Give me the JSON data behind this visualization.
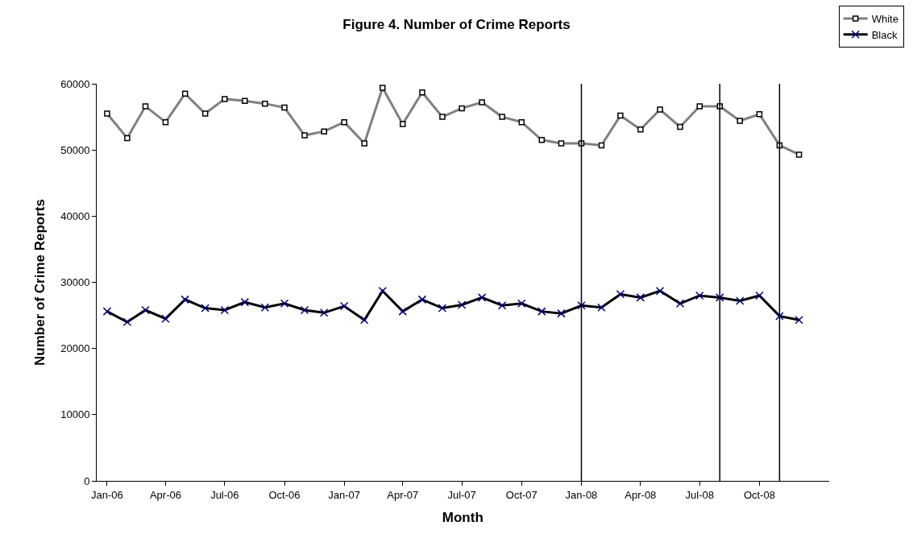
{
  "chart_data": {
    "type": "line",
    "title": "Figure 4. Number of Crime Reports",
    "xlabel": "Month",
    "ylabel": "Number of Crime Reports",
    "x": [
      "2006-01",
      "2006-02",
      "2006-03",
      "2006-04",
      "2006-05",
      "2006-06",
      "2006-07",
      "2006-08",
      "2006-09",
      "2006-10",
      "2006-11",
      "2006-12",
      "2007-01",
      "2007-02",
      "2007-03",
      "2007-04",
      "2007-05",
      "2007-06",
      "2007-07",
      "2007-08",
      "2007-09",
      "2007-10",
      "2007-11",
      "2007-12",
      "2008-01",
      "2008-02",
      "2008-03",
      "2008-04",
      "2008-05",
      "2008-06",
      "2008-07",
      "2008-08",
      "2008-09",
      "2008-10",
      "2008-11",
      "2008-12"
    ],
    "series": [
      {
        "name": "White",
        "color": "#808080",
        "marker": "square",
        "values": [
          55500,
          51800,
          56600,
          54200,
          58500,
          55500,
          57700,
          57400,
          57000,
          56400,
          52200,
          52800,
          54200,
          51000,
          59400,
          53900,
          58700,
          55000,
          56300,
          57200,
          55000,
          54200,
          51500,
          51000,
          51000,
          50700,
          55200,
          53100,
          56100,
          53500,
          56600,
          56600,
          54400,
          55400,
          50700,
          49300
        ]
      },
      {
        "name": "Black",
        "color": "#000000",
        "marker": "cross",
        "values": [
          25600,
          24000,
          25800,
          24500,
          27400,
          26100,
          25800,
          27000,
          26200,
          26800,
          25800,
          25400,
          26400,
          24300,
          28700,
          25600,
          27400,
          26100,
          26600,
          27700,
          26500,
          26800,
          25600,
          25300,
          26500,
          26200,
          28200,
          27700,
          28700,
          26800,
          28000,
          27700,
          27200,
          28000,
          24900,
          24300
        ]
      }
    ],
    "xlim": [
      "2005-12-16",
      "2009-01-16"
    ],
    "xticks": [
      {
        "value": "2006-01",
        "label": "Jan-06"
      },
      {
        "value": "2006-04",
        "label": "Apr-06"
      },
      {
        "value": "2006-07",
        "label": "Jul-06"
      },
      {
        "value": "2006-10",
        "label": "Oct-06"
      },
      {
        "value": "2007-01",
        "label": "Jan-07"
      },
      {
        "value": "2007-04",
        "label": "Apr-07"
      },
      {
        "value": "2007-07",
        "label": "Jul-07"
      },
      {
        "value": "2007-10",
        "label": "Oct-07"
      },
      {
        "value": "2008-01",
        "label": "Jan-08"
      },
      {
        "value": "2008-04",
        "label": "Apr-08"
      },
      {
        "value": "2008-07",
        "label": "Jul-08"
      },
      {
        "value": "2008-10",
        "label": "Oct-08"
      }
    ],
    "ylim": [
      0,
      60000
    ],
    "yticks": [
      0,
      10000,
      20000,
      30000,
      40000,
      50000,
      60000
    ],
    "ref_lines": [
      {
        "axis": "x",
        "value": "2008-01",
        "color": "#000000"
      },
      {
        "axis": "x",
        "value": "2008-08",
        "color": "#000000"
      },
      {
        "axis": "x",
        "value": "2008-11",
        "color": "#000000"
      }
    ],
    "legend": "top right",
    "line_style": "solid"
  }
}
